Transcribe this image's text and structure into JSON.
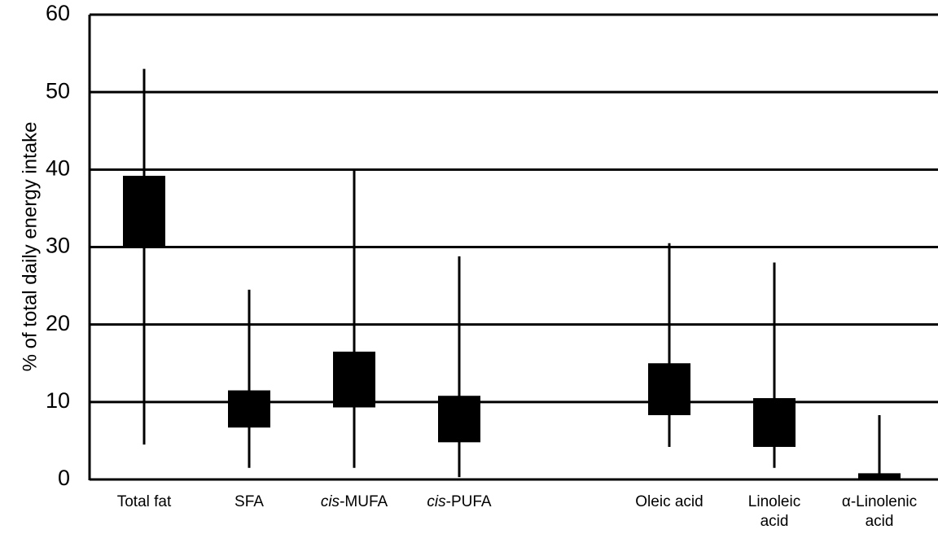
{
  "chart_data": {
    "type": "box",
    "ylabel": "% of total daily energy intake",
    "ylim": [
      0,
      60
    ],
    "yticks": [
      0,
      10,
      20,
      30,
      40,
      50,
      60
    ],
    "grid": true,
    "categories": [
      {
        "label": [
          "Total fat"
        ],
        "italic_prefix": "",
        "x_index": 0,
        "min": 4.5,
        "q1": 30,
        "q3": 39.2,
        "max": 53
      },
      {
        "label": [
          "SFA"
        ],
        "italic_prefix": "",
        "x_index": 1,
        "min": 1.5,
        "q1": 6.7,
        "q3": 11.5,
        "max": 24.5
      },
      {
        "label": [
          "-MUFA"
        ],
        "italic_prefix": "cis",
        "x_index": 2,
        "min": 1.5,
        "q1": 9.3,
        "q3": 16.5,
        "max": 40
      },
      {
        "label": [
          "-PUFA"
        ],
        "italic_prefix": "cis",
        "x_index": 3,
        "min": 0.3,
        "q1": 4.8,
        "q3": 10.8,
        "max": 28.8
      },
      {
        "label": [
          "Oleic acid"
        ],
        "italic_prefix": "",
        "x_index": 5,
        "min": 4.2,
        "q1": 8.3,
        "q3": 15,
        "max": 30.5
      },
      {
        "label": [
          "Linoleic",
          "acid"
        ],
        "italic_prefix": "",
        "x_index": 6,
        "min": 1.5,
        "q1": 4.2,
        "q3": 10.5,
        "max": 28
      },
      {
        "label": [
          "α-Linolenic",
          "acid"
        ],
        "italic_prefix": "",
        "x_index": 7,
        "min": 0,
        "q1": 0,
        "q3": 0.8,
        "max": 8.3
      }
    ]
  }
}
